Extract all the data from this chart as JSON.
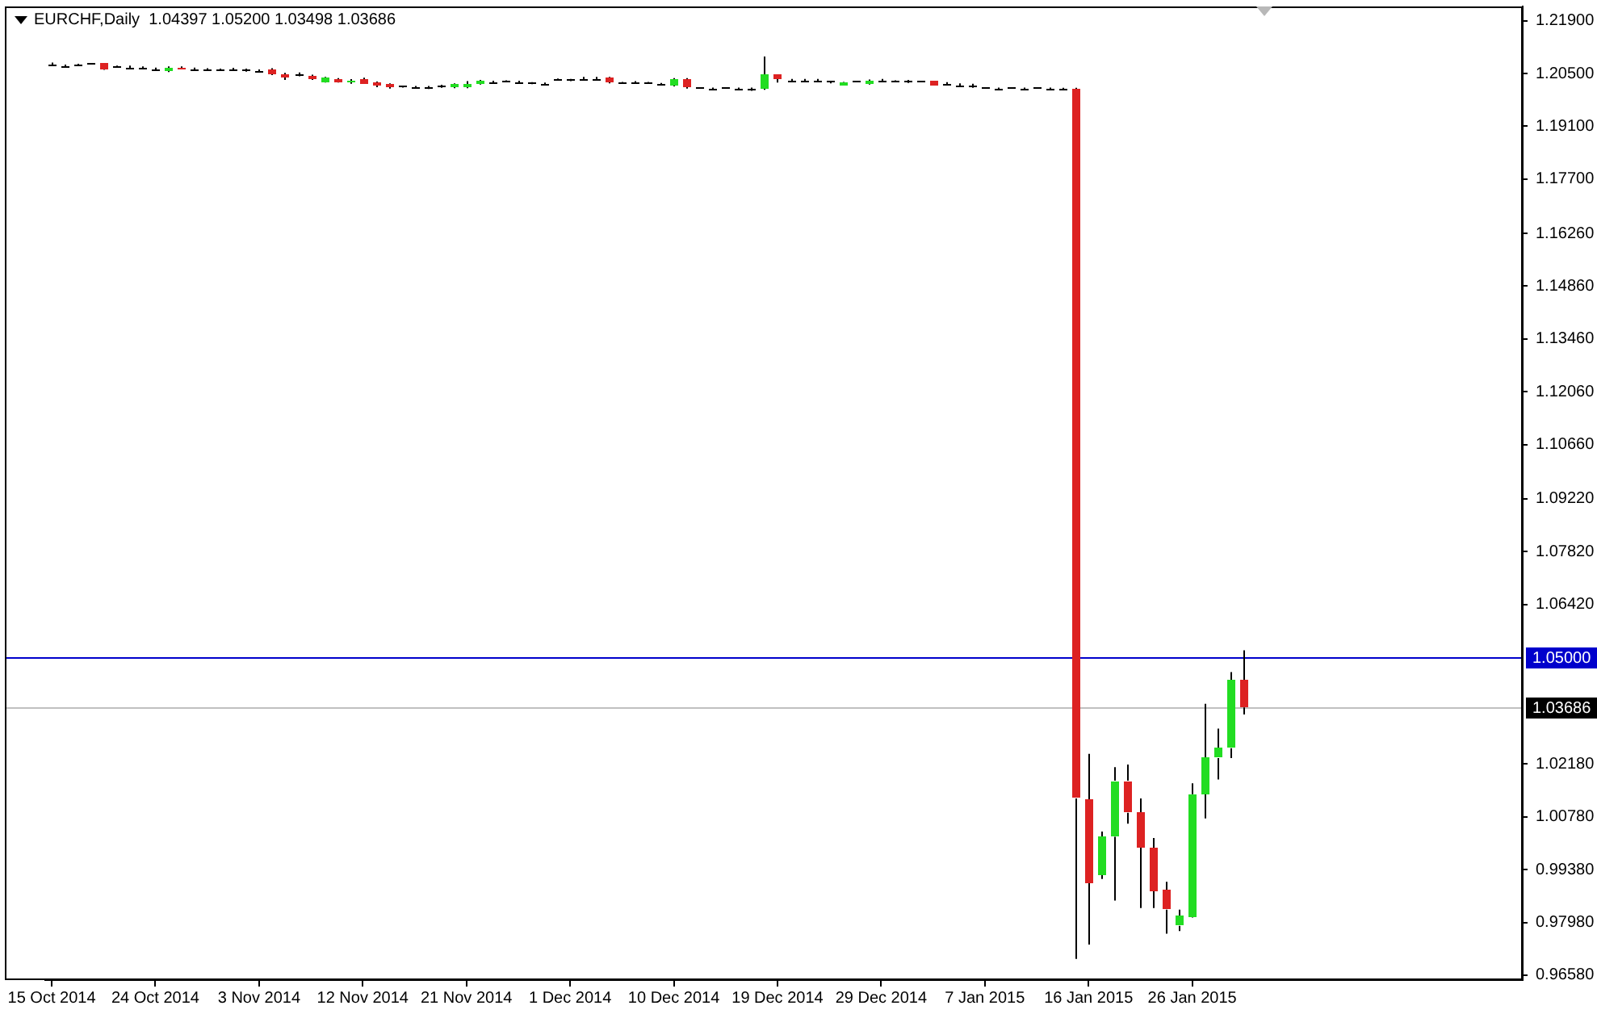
{
  "chart_data": {
    "type": "candlestick",
    "title": "EURCHF,Daily  1.04397 1.05200 1.03498 1.03686",
    "categories": [
      "15 Oct 2014",
      null,
      null,
      null,
      null,
      null,
      null,
      null,
      "24 Oct 2014",
      null,
      null,
      null,
      null,
      null,
      null,
      null,
      "3 Nov 2014",
      null,
      null,
      null,
      null,
      null,
      null,
      null,
      "12 Nov 2014",
      null,
      null,
      null,
      null,
      null,
      null,
      null,
      "21 Nov 2014",
      null,
      null,
      null,
      null,
      null,
      null,
      null,
      "1 Dec 2014",
      null,
      null,
      null,
      null,
      null,
      null,
      null,
      "10 Dec 2014",
      null,
      null,
      null,
      null,
      null,
      null,
      null,
      "19 Dec 2014",
      null,
      null,
      null,
      null,
      null,
      null,
      null,
      "29 Dec 2014",
      null,
      null,
      null,
      null,
      null,
      null,
      null,
      "7 Jan 2015",
      null,
      null,
      null,
      null,
      null,
      null,
      null,
      "16 Jan 2015",
      null,
      null,
      null,
      null,
      null,
      null,
      null,
      "26 Jan 2015",
      null,
      null,
      null,
      null,
      null,
      null,
      null,
      null,
      null,
      null,
      null,
      null,
      null,
      null,
      null,
      null,
      null,
      null,
      null,
      null,
      null,
      null,
      null,
      null,
      null
    ],
    "ohlc": [
      [
        1.2074,
        1.2079,
        1.207,
        1.2074
      ],
      [
        1.207,
        1.2074,
        1.2066,
        1.207
      ],
      [
        1.2074,
        1.2076,
        1.2072,
        1.2074
      ],
      [
        1.2076,
        1.2078,
        1.2074,
        1.2076
      ],
      [
        1.2076,
        1.2078,
        1.206,
        1.2062
      ],
      [
        1.2068,
        1.2071,
        1.2066,
        1.2068
      ],
      [
        1.2067,
        1.2071,
        1.2063,
        1.2067
      ],
      [
        1.2065,
        1.2069,
        1.2061,
        1.2065
      ],
      [
        1.2062,
        1.2066,
        1.2058,
        1.2062
      ],
      [
        1.2056,
        1.2069,
        1.2054,
        1.2067
      ],
      [
        1.2067,
        1.2069,
        1.2061,
        1.2062
      ],
      [
        1.2062,
        1.2066,
        1.2058,
        1.2062
      ],
      [
        1.2062,
        1.2064,
        1.206,
        1.2062
      ],
      [
        1.2061,
        1.2063,
        1.2059,
        1.2061
      ],
      [
        1.2059,
        1.2065,
        1.2058,
        1.2059
      ],
      [
        1.2059,
        1.2063,
        1.2055,
        1.2059
      ],
      [
        1.2057,
        1.2061,
        1.2053,
        1.2057
      ],
      [
        1.2062,
        1.2064,
        1.2046,
        1.2048
      ],
      [
        1.205,
        1.2052,
        1.2033,
        1.2039
      ],
      [
        1.2048,
        1.2053,
        1.2043,
        1.2048
      ],
      [
        1.2045,
        1.2047,
        1.2033,
        1.2034
      ],
      [
        1.2028,
        1.2041,
        1.2026,
        1.2039
      ],
      [
        1.2036,
        1.2038,
        1.2026,
        1.2028
      ],
      [
        1.2025,
        1.2035,
        1.2023,
        1.2033
      ],
      [
        1.2036,
        1.2039,
        1.2021,
        1.2022
      ],
      [
        1.2027,
        1.2029,
        1.2014,
        1.2016
      ],
      [
        1.2022,
        1.2024,
        1.201,
        1.2013
      ],
      [
        1.2016,
        1.2018,
        1.2013,
        1.2016
      ],
      [
        1.2015,
        1.2017,
        1.2012,
        1.2015
      ],
      [
        1.2013,
        1.2017,
        1.2009,
        1.2013
      ],
      [
        1.2016,
        1.202,
        1.2012,
        1.2016
      ],
      [
        1.2013,
        1.2024,
        1.2011,
        1.2022
      ],
      [
        1.2013,
        1.203,
        1.2011,
        1.2024
      ],
      [
        1.2023,
        1.2033,
        1.2021,
        1.2031
      ],
      [
        1.2027,
        1.2031,
        1.2023,
        1.2027
      ],
      [
        1.203,
        1.2032,
        1.2028,
        1.203
      ],
      [
        1.2027,
        1.2031,
        1.2023,
        1.2027
      ],
      [
        1.2025,
        1.2027,
        1.2022,
        1.2025
      ],
      [
        1.2022,
        1.2026,
        1.2018,
        1.2022
      ],
      [
        1.2036,
        1.2037,
        1.2031,
        1.2036
      ],
      [
        1.2035,
        1.2036,
        1.203,
        1.2035
      ],
      [
        1.2037,
        1.2041,
        1.2033,
        1.2037
      ],
      [
        1.2037,
        1.2041,
        1.2032,
        1.2037
      ],
      [
        1.2038,
        1.2041,
        1.2024,
        1.2026
      ],
      [
        1.2026,
        1.2028,
        1.2023,
        1.2026
      ],
      [
        1.2028,
        1.203,
        1.2026,
        1.2028
      ],
      [
        1.2026,
        1.2028,
        1.2023,
        1.2026
      ],
      [
        1.2023,
        1.2025,
        1.202,
        1.2023
      ],
      [
        1.2018,
        1.2038,
        1.2016,
        1.2035
      ],
      [
        1.2035,
        1.2038,
        1.201,
        1.2012
      ],
      [
        1.2012,
        1.2014,
        1.201,
        1.2012
      ],
      [
        1.2011,
        1.2013,
        1.2009,
        1.2011
      ],
      [
        1.2012,
        1.2014,
        1.201,
        1.2012
      ],
      [
        1.2009,
        1.2013,
        1.2005,
        1.2009
      ],
      [
        1.2009,
        1.2013,
        1.2004,
        1.2009
      ],
      [
        1.2009,
        1.2095,
        1.2007,
        1.2046
      ],
      [
        1.2046,
        1.2048,
        1.2026,
        1.2035
      ],
      [
        1.2032,
        1.2036,
        1.2028,
        1.2032
      ],
      [
        1.2032,
        1.2036,
        1.2028,
        1.2032
      ],
      [
        1.2032,
        1.2036,
        1.2027,
        1.2032
      ],
      [
        1.2029,
        1.203,
        1.2024,
        1.2029
      ],
      [
        1.202,
        1.2028,
        1.2018,
        1.2026
      ],
      [
        1.2029,
        1.2031,
        1.2027,
        1.2029
      ],
      [
        1.2023,
        1.2034,
        1.2021,
        1.2032
      ],
      [
        1.2032,
        1.2036,
        1.2028,
        1.2032
      ],
      [
        1.203,
        1.2032,
        1.2027,
        1.203
      ],
      [
        1.2029,
        1.2033,
        1.2025,
        1.2029
      ],
      [
        1.2029,
        1.2031,
        1.2027,
        1.2029
      ],
      [
        1.2029,
        1.2031,
        1.2019,
        1.202
      ],
      [
        1.2023,
        1.2027,
        1.2019,
        1.2023
      ],
      [
        1.202,
        1.2024,
        1.2016,
        1.202
      ],
      [
        1.2018,
        1.2023,
        1.2012,
        1.2018
      ],
      [
        1.2012,
        1.2014,
        1.201,
        1.2012
      ],
      [
        1.2011,
        1.2013,
        1.2009,
        1.2011
      ],
      [
        1.2012,
        1.2014,
        1.201,
        1.2012
      ],
      [
        1.2011,
        1.2013,
        1.2009,
        1.2011
      ],
      [
        1.2012,
        1.2014,
        1.201,
        1.2012
      ],
      [
        1.2011,
        1.2013,
        1.2009,
        1.2011
      ],
      [
        1.201,
        1.2012,
        1.2008,
        1.201
      ],
      [
        1.201,
        1.2012,
        0.9701,
        1.0127
      ],
      [
        1.0124,
        1.0245,
        0.9739,
        0.9903
      ],
      [
        0.9925,
        1.0039,
        0.9913,
        1.0025
      ],
      [
        1.0025,
        1.021,
        0.9856,
        1.0174
      ],
      [
        1.0174,
        1.0217,
        1.006,
        1.0089
      ],
      [
        1.0089,
        1.0127,
        0.9836,
        0.9996
      ],
      [
        0.9996,
        1.0022,
        0.9836,
        0.9882
      ],
      [
        0.9885,
        0.9906,
        0.9768,
        0.9832
      ],
      [
        0.9789,
        0.9832,
        0.9775,
        0.9815
      ],
      [
        0.9813,
        1.0167,
        0.9811,
        1.0138
      ],
      [
        1.0138,
        1.0378,
        1.0074,
        1.0234
      ],
      [
        1.0234,
        1.0312,
        1.0177,
        1.026
      ],
      [
        1.026,
        1.0462,
        1.0234,
        1.044
      ],
      [
        1.04397,
        1.052,
        1.03498,
        1.03686
      ],
      null,
      null,
      null,
      null,
      null,
      null,
      null,
      null,
      null,
      null,
      null,
      null,
      null,
      null,
      null,
      null,
      null,
      null,
      null,
      null,
      null
    ],
    "colors": [
      "#000000",
      "#000000",
      "#000000",
      "#000000",
      "#dd2222",
      "#000000",
      "#000000",
      "#000000",
      "#000000",
      "#22dd22",
      "#dd2222",
      "#000000",
      "#000000",
      "#000000",
      "#000000",
      "#000000",
      "#000000",
      "#dd2222",
      "#dd2222",
      "#000000",
      "#dd2222",
      "#22dd22",
      "#dd2222",
      "#22dd22",
      "#dd2222",
      "#dd2222",
      "#dd2222",
      "#000000",
      "#000000",
      "#000000",
      "#000000",
      "#22dd22",
      "#22dd22",
      "#22dd22",
      "#000000",
      "#000000",
      "#000000",
      "#000000",
      "#000000",
      "#000000",
      "#000000",
      "#000000",
      "#000000",
      "#dd2222",
      "#000000",
      "#000000",
      "#000000",
      "#000000",
      "#22dd22",
      "#dd2222",
      "#000000",
      "#000000",
      "#000000",
      "#000000",
      "#000000",
      "#22dd22",
      "#dd2222",
      "#000000",
      "#000000",
      "#000000",
      "#000000",
      "#22dd22",
      "#000000",
      "#22dd22",
      "#000000",
      "#000000",
      "#000000",
      "#000000",
      "#dd2222",
      "#000000",
      "#000000",
      "#000000",
      "#000000",
      "#000000",
      "#000000",
      "#000000",
      "#000000",
      "#000000",
      "#000000",
      "#dd2222",
      "#dd2222",
      "#22dd22",
      "#22dd22",
      "#dd2222",
      "#dd2222",
      "#dd2222",
      "#dd2222",
      "#22dd22",
      "#22dd22",
      "#22dd22",
      "#22dd22",
      "#22dd22",
      "#dd2222",
      null,
      null,
      null,
      null,
      null,
      null,
      null,
      null,
      null,
      null,
      null,
      null,
      null,
      null,
      null,
      null,
      null,
      null,
      null,
      null,
      null
    ],
    "ylim": [
      0.9645,
      1.2228
    ],
    "yticks": [
      {
        "value": 0.9658,
        "label": "0.96580"
      },
      {
        "value": 0.9798,
        "label": "0.97980"
      },
      {
        "value": 0.9938,
        "label": "0.99380"
      },
      {
        "value": 1.0078,
        "label": "1.00780"
      },
      {
        "value": 1.0218,
        "label": "1.02180"
      },
      {
        "value": 1.0642,
        "label": "1.06420"
      },
      {
        "value": 1.0782,
        "label": "1.07820"
      },
      {
        "value": 1.0922,
        "label": "1.09220"
      },
      {
        "value": 1.1066,
        "label": "1.10660"
      },
      {
        "value": 1.1206,
        "label": "1.12060"
      },
      {
        "value": 1.1346,
        "label": "1.13460"
      },
      {
        "value": 1.1486,
        "label": "1.14860"
      },
      {
        "value": 1.1626,
        "label": "1.16260"
      },
      {
        "value": 1.177,
        "label": "1.17700"
      },
      {
        "value": 1.191,
        "label": "1.19100"
      },
      {
        "value": 1.205,
        "label": "1.20500"
      },
      {
        "value": 1.219,
        "label": "1.21900"
      }
    ],
    "ref_lines": [
      {
        "axis": "y",
        "value": 1.05,
        "label": "1.05000",
        "color": "#0000cc"
      },
      {
        "axis": "y",
        "value": 1.03686,
        "label": "1.03686",
        "color": "#c0c0c0"
      }
    ]
  }
}
